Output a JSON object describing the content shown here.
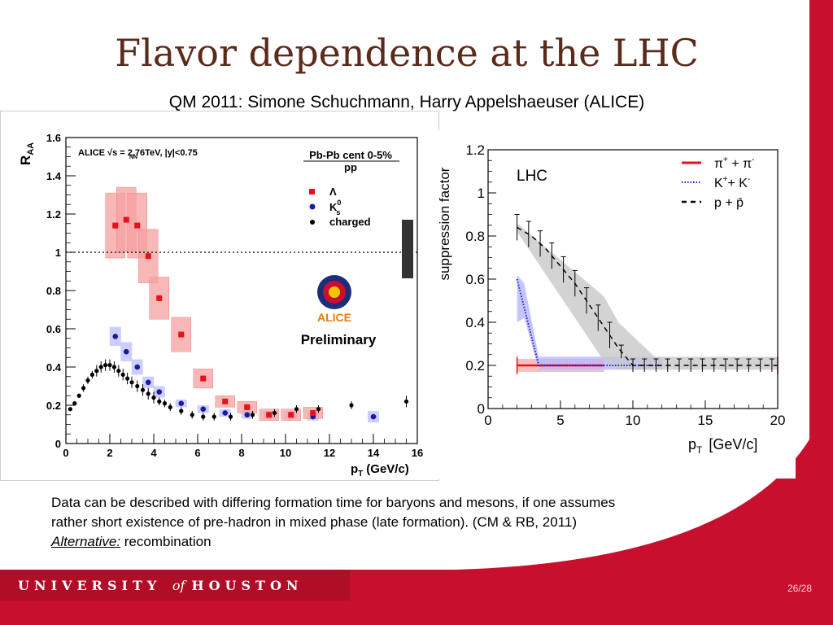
{
  "slide": {
    "title": "Flavor dependence at the LHC",
    "subtitle": "QM 2011: Simone Schuchmann, Harry Appelshaeuser (ALICE)",
    "body_line1": "Data can be described with differing formation time for baryons and mesons, if one assumes",
    "body_line2": "rather short existence of pre-hadron in mixed phase (late formation). (CM & RB, 2011)",
    "alternative_label": "Alternative:",
    "alternative_text": " recombination",
    "footer_university": "UNIVERSITY",
    "footer_of": "of",
    "footer_houston": "HOUSTON",
    "page_number": "26/28"
  },
  "colors": {
    "accent_red": "#c8102e",
    "title_brown": "#5a2a1a"
  },
  "chart_data": [
    {
      "type": "scatter",
      "ylabel_main": "R",
      "ylabel_sub": "AA",
      "xlabel_main": "p",
      "xlabel_sub": "T",
      "xlabel_unit": "(GeV/c)",
      "xlim": [
        0,
        16
      ],
      "ylim": [
        0,
        1.6
      ],
      "xticks": [
        "0",
        "2",
        "4",
        "6",
        "8",
        "10",
        "12",
        "14",
        "16"
      ],
      "yticks": [
        "0",
        "0.2",
        "0.4",
        "0.6",
        "0.8",
        "1",
        "1.2",
        "1.4",
        "1.6"
      ],
      "reference_line": 1,
      "annotation_energy": "ALICE √s   = 2.76TeV, |y|<0.75",
      "annotation_energy_sub": "NN",
      "annotation_system": "Pb-Pb cent 0-5%",
      "annotation_system_den": "pp",
      "logo_text": "ALICE",
      "preliminary": "Preliminary",
      "legend": [
        {
          "symbol": "square",
          "color": "#e8101a",
          "label": "Λ"
        },
        {
          "symbol": "circle",
          "color": "#1a1aa0",
          "label": "K",
          "label_sup": "0",
          "label_sub": "s"
        },
        {
          "symbol": "circle",
          "color": "#000000",
          "label": "charged"
        }
      ],
      "series": [
        {
          "name": "Λ",
          "color": "#e8101a",
          "points": [
            [
              2.25,
              1.14
            ],
            [
              2.75,
              1.17
            ],
            [
              3.25,
              1.14
            ],
            [
              3.75,
              0.98
            ],
            [
              4.25,
              0.76
            ],
            [
              5.25,
              0.57
            ],
            [
              6.25,
              0.34
            ],
            [
              7.25,
              0.22
            ],
            [
              8.25,
              0.19
            ],
            [
              9.25,
              0.15
            ],
            [
              10.25,
              0.15
            ],
            [
              11.25,
              0.16
            ]
          ],
          "syst": [
            [
              2.25,
              0.17
            ],
            [
              2.75,
              0.17
            ],
            [
              3.25,
              0.17
            ],
            [
              3.75,
              0.14
            ],
            [
              4.25,
              0.11
            ],
            [
              5.25,
              0.09
            ],
            [
              6.25,
              0.05
            ],
            [
              7.25,
              0.03
            ],
            [
              8.25,
              0.03
            ],
            [
              9.25,
              0.03
            ],
            [
              10.25,
              0.03
            ],
            [
              11.25,
              0.03
            ]
          ]
        },
        {
          "name": "K0s",
          "color": "#1a1aa0",
          "points": [
            [
              2.25,
              0.56
            ],
            [
              2.75,
              0.48
            ],
            [
              3.25,
              0.4
            ],
            [
              3.75,
              0.32
            ],
            [
              4.25,
              0.27
            ],
            [
              5.25,
              0.21
            ],
            [
              6.25,
              0.18
            ],
            [
              7.25,
              0.16
            ],
            [
              8.25,
              0.15
            ],
            [
              9.25,
              0.15
            ],
            [
              10.25,
              0.15
            ],
            [
              11.25,
              0.14
            ],
            [
              14,
              0.14
            ]
          ],
          "syst": [
            [
              2.25,
              0.05
            ],
            [
              2.75,
              0.05
            ],
            [
              3.25,
              0.04
            ],
            [
              3.75,
              0.03
            ],
            [
              4.25,
              0.03
            ],
            [
              5.25,
              0.02
            ],
            [
              6.25,
              0.02
            ],
            [
              7.25,
              0.02
            ],
            [
              8.25,
              0.02
            ],
            [
              9.25,
              0.02
            ],
            [
              10.25,
              0.02
            ],
            [
              11.25,
              0.02
            ],
            [
              14,
              0.03
            ]
          ]
        },
        {
          "name": "charged",
          "color": "#000000",
          "points": [
            [
              0.2,
              0.18
            ],
            [
              0.4,
              0.21
            ],
            [
              0.6,
              0.25
            ],
            [
              0.8,
              0.29
            ],
            [
              1.0,
              0.33
            ],
            [
              1.2,
              0.36
            ],
            [
              1.4,
              0.38
            ],
            [
              1.6,
              0.4
            ],
            [
              1.8,
              0.41
            ],
            [
              2.0,
              0.41
            ],
            [
              2.2,
              0.4
            ],
            [
              2.4,
              0.38
            ],
            [
              2.6,
              0.36
            ],
            [
              2.8,
              0.34
            ],
            [
              3.0,
              0.32
            ],
            [
              3.25,
              0.3
            ],
            [
              3.5,
              0.28
            ],
            [
              3.75,
              0.26
            ],
            [
              4.0,
              0.24
            ],
            [
              4.25,
              0.22
            ],
            [
              4.5,
              0.21
            ],
            [
              4.75,
              0.19
            ],
            [
              5.25,
              0.17
            ],
            [
              5.75,
              0.15
            ],
            [
              6.25,
              0.14
            ],
            [
              6.75,
              0.14
            ],
            [
              7.5,
              0.14
            ],
            [
              8.5,
              0.15
            ],
            [
              9.5,
              0.16
            ],
            [
              10.5,
              0.18
            ],
            [
              11.5,
              0.18
            ],
            [
              13,
              0.2
            ],
            [
              15.5,
              0.22
            ]
          ],
          "err": [
            [
              0.2,
              0.01
            ],
            [
              0.4,
              0.01
            ],
            [
              0.6,
              0.01
            ],
            [
              0.8,
              0.02
            ],
            [
              1.0,
              0.02
            ],
            [
              1.2,
              0.02
            ],
            [
              1.4,
              0.03
            ],
            [
              1.6,
              0.03
            ],
            [
              1.8,
              0.03
            ],
            [
              2.0,
              0.03
            ],
            [
              2.2,
              0.03
            ],
            [
              2.4,
              0.03
            ],
            [
              2.6,
              0.03
            ],
            [
              2.8,
              0.03
            ],
            [
              3.0,
              0.03
            ],
            [
              3.25,
              0.03
            ],
            [
              3.5,
              0.03
            ],
            [
              3.75,
              0.03
            ],
            [
              4.0,
              0.03
            ],
            [
              4.25,
              0.02
            ],
            [
              4.5,
              0.02
            ],
            [
              4.75,
              0.02
            ],
            [
              5.25,
              0.02
            ],
            [
              5.75,
              0.02
            ],
            [
              6.25,
              0.02
            ],
            [
              6.75,
              0.02
            ],
            [
              7.5,
              0.02
            ],
            [
              8.5,
              0.02
            ],
            [
              9.5,
              0.02
            ],
            [
              10.5,
              0.02
            ],
            [
              11.5,
              0.02
            ],
            [
              13,
              0.02
            ],
            [
              15.5,
              0.03
            ]
          ]
        }
      ]
    },
    {
      "type": "line",
      "ylabel": "suppression factor",
      "xlabel_main": "p",
      "xlabel_sub": "T",
      "xlabel_unit": "[GeV/c]",
      "xlim": [
        0,
        20
      ],
      "ylim": [
        0,
        1.2
      ],
      "xticks": [
        "0",
        "5",
        "10",
        "15",
        "20"
      ],
      "yticks": [
        "0",
        "0.2",
        "0.4",
        "0.6",
        "0.8",
        "1",
        "1.2"
      ],
      "label_lhc": "LHC",
      "legend": [
        {
          "style": "solid",
          "color": "#e8101a",
          "label": "π",
          "sup1": "+",
          "mid": " + π",
          "sup2": "-"
        },
        {
          "style": "dotted",
          "color": "#2020d0",
          "label": "K",
          "sup1": "+",
          "mid": "+ K",
          "sup2": "-"
        },
        {
          "style": "dashed",
          "color": "#000000",
          "label": "p + p̄"
        }
      ],
      "series": [
        {
          "name": "π⁺ + π⁻",
          "color": "#e8101a",
          "points": [
            [
              2,
              0.2
            ],
            [
              4,
              0.2
            ],
            [
              6,
              0.2
            ],
            [
              8,
              0.2
            ]
          ],
          "band": [
            [
              2,
              0.17,
              0.23
            ],
            [
              4,
              0.17,
              0.23
            ],
            [
              6,
              0.17,
              0.23
            ],
            [
              8,
              0.17,
              0.23
            ]
          ]
        },
        {
          "name": "K⁺ + K⁻",
          "color": "#2020d0",
          "points": [
            [
              2,
              0.6
            ],
            [
              3.5,
              0.2
            ],
            [
              5,
              0.2
            ],
            [
              8,
              0.2
            ],
            [
              12,
              0.2
            ]
          ],
          "band": [
            [
              2,
              0.4,
              0.62
            ],
            [
              2.5,
              0.42,
              0.58
            ],
            [
              3.5,
              0.18,
              0.24
            ],
            [
              5,
              0.18,
              0.24
            ],
            [
              8,
              0.18,
              0.24
            ],
            [
              12,
              0.18,
              0.24
            ]
          ]
        },
        {
          "name": "p + p̄",
          "color": "#000000",
          "points": [
            [
              2,
              0.84
            ],
            [
              3,
              0.8
            ],
            [
              4,
              0.74
            ],
            [
              5,
              0.66
            ],
            [
              6,
              0.58
            ],
            [
              7,
              0.48
            ],
            [
              8,
              0.38
            ],
            [
              9,
              0.28
            ],
            [
              10,
              0.2
            ],
            [
              12,
              0.2
            ],
            [
              14,
              0.2
            ],
            [
              16,
              0.2
            ],
            [
              18,
              0.2
            ],
            [
              20,
              0.2
            ]
          ],
          "band": [
            [
              2,
              0.82,
              0.86
            ],
            [
              8,
              0.22,
              0.52
            ],
            [
              9,
              0.18,
              0.4
            ],
            [
              11.5,
              0.18,
              0.24
            ],
            [
              20,
              0.18,
              0.24
            ]
          ]
        }
      ]
    }
  ]
}
